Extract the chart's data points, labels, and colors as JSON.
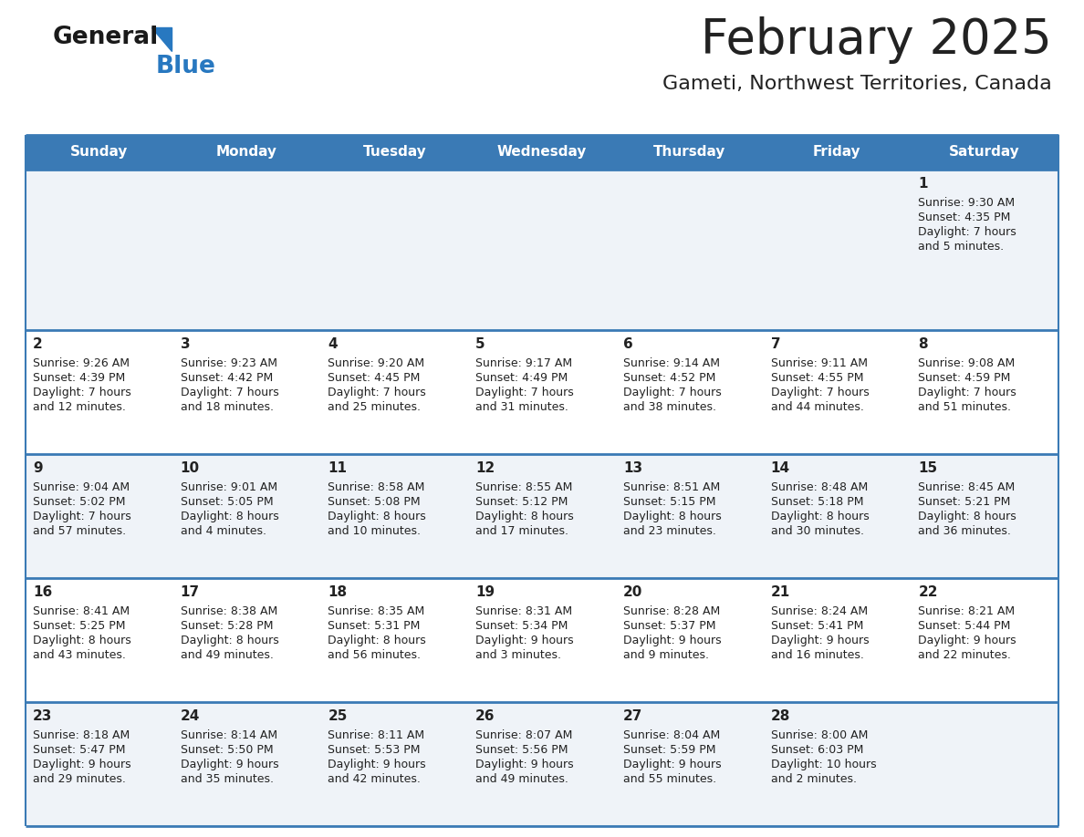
{
  "title": "February 2025",
  "subtitle": "Gameti, Northwest Territories, Canada",
  "days_of_week": [
    "Sunday",
    "Monday",
    "Tuesday",
    "Wednesday",
    "Thursday",
    "Friday",
    "Saturday"
  ],
  "header_bg": "#3a7ab5",
  "header_text": "#ffffff",
  "row_bg_even": "#eff3f8",
  "row_bg_odd": "#ffffff",
  "border_color": "#3a7ab5",
  "text_color": "#222222",
  "logo_general_color": "#1a1a1a",
  "logo_blue_color": "#2878c0",
  "calendar_data": [
    {
      "day": 1,
      "col": 6,
      "row": 0,
      "sunrise": "9:30 AM",
      "sunset": "4:35 PM",
      "daylight_h": "7 hours",
      "daylight_m": "and 5 minutes."
    },
    {
      "day": 2,
      "col": 0,
      "row": 1,
      "sunrise": "9:26 AM",
      "sunset": "4:39 PM",
      "daylight_h": "7 hours",
      "daylight_m": "and 12 minutes."
    },
    {
      "day": 3,
      "col": 1,
      "row": 1,
      "sunrise": "9:23 AM",
      "sunset": "4:42 PM",
      "daylight_h": "7 hours",
      "daylight_m": "and 18 minutes."
    },
    {
      "day": 4,
      "col": 2,
      "row": 1,
      "sunrise": "9:20 AM",
      "sunset": "4:45 PM",
      "daylight_h": "7 hours",
      "daylight_m": "and 25 minutes."
    },
    {
      "day": 5,
      "col": 3,
      "row": 1,
      "sunrise": "9:17 AM",
      "sunset": "4:49 PM",
      "daylight_h": "7 hours",
      "daylight_m": "and 31 minutes."
    },
    {
      "day": 6,
      "col": 4,
      "row": 1,
      "sunrise": "9:14 AM",
      "sunset": "4:52 PM",
      "daylight_h": "7 hours",
      "daylight_m": "and 38 minutes."
    },
    {
      "day": 7,
      "col": 5,
      "row": 1,
      "sunrise": "9:11 AM",
      "sunset": "4:55 PM",
      "daylight_h": "7 hours",
      "daylight_m": "and 44 minutes."
    },
    {
      "day": 8,
      "col": 6,
      "row": 1,
      "sunrise": "9:08 AM",
      "sunset": "4:59 PM",
      "daylight_h": "7 hours",
      "daylight_m": "and 51 minutes."
    },
    {
      "day": 9,
      "col": 0,
      "row": 2,
      "sunrise": "9:04 AM",
      "sunset": "5:02 PM",
      "daylight_h": "7 hours",
      "daylight_m": "and 57 minutes."
    },
    {
      "day": 10,
      "col": 1,
      "row": 2,
      "sunrise": "9:01 AM",
      "sunset": "5:05 PM",
      "daylight_h": "8 hours",
      "daylight_m": "and 4 minutes."
    },
    {
      "day": 11,
      "col": 2,
      "row": 2,
      "sunrise": "8:58 AM",
      "sunset": "5:08 PM",
      "daylight_h": "8 hours",
      "daylight_m": "and 10 minutes."
    },
    {
      "day": 12,
      "col": 3,
      "row": 2,
      "sunrise": "8:55 AM",
      "sunset": "5:12 PM",
      "daylight_h": "8 hours",
      "daylight_m": "and 17 minutes."
    },
    {
      "day": 13,
      "col": 4,
      "row": 2,
      "sunrise": "8:51 AM",
      "sunset": "5:15 PM",
      "daylight_h": "8 hours",
      "daylight_m": "and 23 minutes."
    },
    {
      "day": 14,
      "col": 5,
      "row": 2,
      "sunrise": "8:48 AM",
      "sunset": "5:18 PM",
      "daylight_h": "8 hours",
      "daylight_m": "and 30 minutes."
    },
    {
      "day": 15,
      "col": 6,
      "row": 2,
      "sunrise": "8:45 AM",
      "sunset": "5:21 PM",
      "daylight_h": "8 hours",
      "daylight_m": "and 36 minutes."
    },
    {
      "day": 16,
      "col": 0,
      "row": 3,
      "sunrise": "8:41 AM",
      "sunset": "5:25 PM",
      "daylight_h": "8 hours",
      "daylight_m": "and 43 minutes."
    },
    {
      "day": 17,
      "col": 1,
      "row": 3,
      "sunrise": "8:38 AM",
      "sunset": "5:28 PM",
      "daylight_h": "8 hours",
      "daylight_m": "and 49 minutes."
    },
    {
      "day": 18,
      "col": 2,
      "row": 3,
      "sunrise": "8:35 AM",
      "sunset": "5:31 PM",
      "daylight_h": "8 hours",
      "daylight_m": "and 56 minutes."
    },
    {
      "day": 19,
      "col": 3,
      "row": 3,
      "sunrise": "8:31 AM",
      "sunset": "5:34 PM",
      "daylight_h": "9 hours",
      "daylight_m": "and 3 minutes."
    },
    {
      "day": 20,
      "col": 4,
      "row": 3,
      "sunrise": "8:28 AM",
      "sunset": "5:37 PM",
      "daylight_h": "9 hours",
      "daylight_m": "and 9 minutes."
    },
    {
      "day": 21,
      "col": 5,
      "row": 3,
      "sunrise": "8:24 AM",
      "sunset": "5:41 PM",
      "daylight_h": "9 hours",
      "daylight_m": "and 16 minutes."
    },
    {
      "day": 22,
      "col": 6,
      "row": 3,
      "sunrise": "8:21 AM",
      "sunset": "5:44 PM",
      "daylight_h": "9 hours",
      "daylight_m": "and 22 minutes."
    },
    {
      "day": 23,
      "col": 0,
      "row": 4,
      "sunrise": "8:18 AM",
      "sunset": "5:47 PM",
      "daylight_h": "9 hours",
      "daylight_m": "and 29 minutes."
    },
    {
      "day": 24,
      "col": 1,
      "row": 4,
      "sunrise": "8:14 AM",
      "sunset": "5:50 PM",
      "daylight_h": "9 hours",
      "daylight_m": "and 35 minutes."
    },
    {
      "day": 25,
      "col": 2,
      "row": 4,
      "sunrise": "8:11 AM",
      "sunset": "5:53 PM",
      "daylight_h": "9 hours",
      "daylight_m": "and 42 minutes."
    },
    {
      "day": 26,
      "col": 3,
      "row": 4,
      "sunrise": "8:07 AM",
      "sunset": "5:56 PM",
      "daylight_h": "9 hours",
      "daylight_m": "and 49 minutes."
    },
    {
      "day": 27,
      "col": 4,
      "row": 4,
      "sunrise": "8:04 AM",
      "sunset": "5:59 PM",
      "daylight_h": "9 hours",
      "daylight_m": "and 55 minutes."
    },
    {
      "day": 28,
      "col": 5,
      "row": 4,
      "sunrise": "8:00 AM",
      "sunset": "6:03 PM",
      "daylight_h": "10 hours",
      "daylight_m": "and 2 minutes."
    }
  ],
  "num_rows": 5,
  "num_cols": 7
}
